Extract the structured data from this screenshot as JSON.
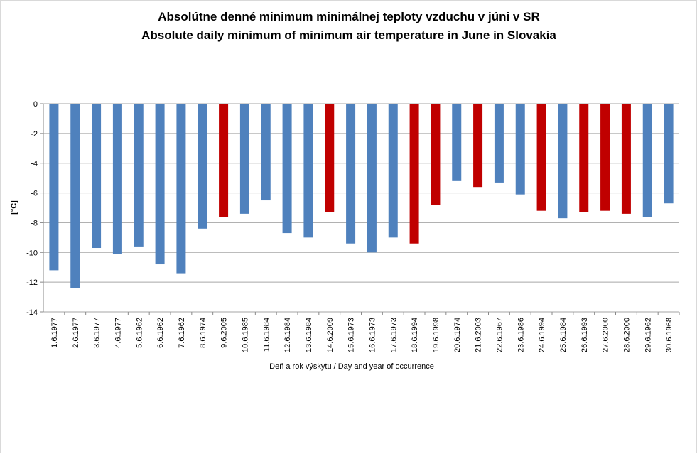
{
  "chart_data": {
    "type": "bar",
    "title": [
      "Absolútne denné minimum minimálnej teploty vzduchu v júni v SR",
      "Absolute daily minimum of minimum air temperature in June in Slovakia"
    ],
    "xlabel": "Deň a rok výskytu  / Day and year of occurrence",
    "ylabel": "[°C]",
    "ylim": [
      -14,
      0
    ],
    "yticks": [
      0,
      -2,
      -4,
      -6,
      -8,
      -10,
      -12,
      -14
    ],
    "grid": true,
    "colors": {
      "default": "#4f81bd",
      "highlight": "#c00000",
      "grid": "#a6a6a6"
    },
    "categories": [
      "1.6.1977",
      "2.6.1977",
      "3.6.1977",
      "4.6.1977",
      "5.6.1962",
      "6.6.1962",
      "7.6.1962",
      "8.6.1974",
      "9.6.2005",
      "10.6.1985",
      "11.6.1984",
      "12.6.1984",
      "13.6.1984",
      "14.6.2009",
      "15.6.1973",
      "16.6.1973",
      "17.6.1973",
      "18.6.1994",
      "19.6.1998",
      "20.6.1974",
      "21.6.2003",
      "22.6.1967",
      "23.6.1986",
      "24.6.1994",
      "25.6.1984",
      "26.6.1993",
      "27.6.2000",
      "28.6.2000",
      "29.6.1962",
      "30.6.1968"
    ],
    "values": [
      -11.2,
      -12.4,
      -9.7,
      -10.1,
      -9.6,
      -10.8,
      -11.4,
      -8.4,
      -7.6,
      -7.4,
      -6.5,
      -8.7,
      -9.0,
      -7.3,
      -9.4,
      -10.0,
      -9.0,
      -9.4,
      -6.8,
      -5.2,
      -5.6,
      -5.3,
      -6.1,
      -7.2,
      -7.7,
      -7.3,
      -7.2,
      -7.4,
      -7.6,
      -6.7
    ],
    "highlighted": [
      false,
      false,
      false,
      false,
      false,
      false,
      false,
      false,
      true,
      false,
      false,
      false,
      false,
      true,
      false,
      false,
      false,
      true,
      true,
      false,
      true,
      false,
      false,
      true,
      false,
      true,
      true,
      true,
      false,
      false
    ]
  }
}
